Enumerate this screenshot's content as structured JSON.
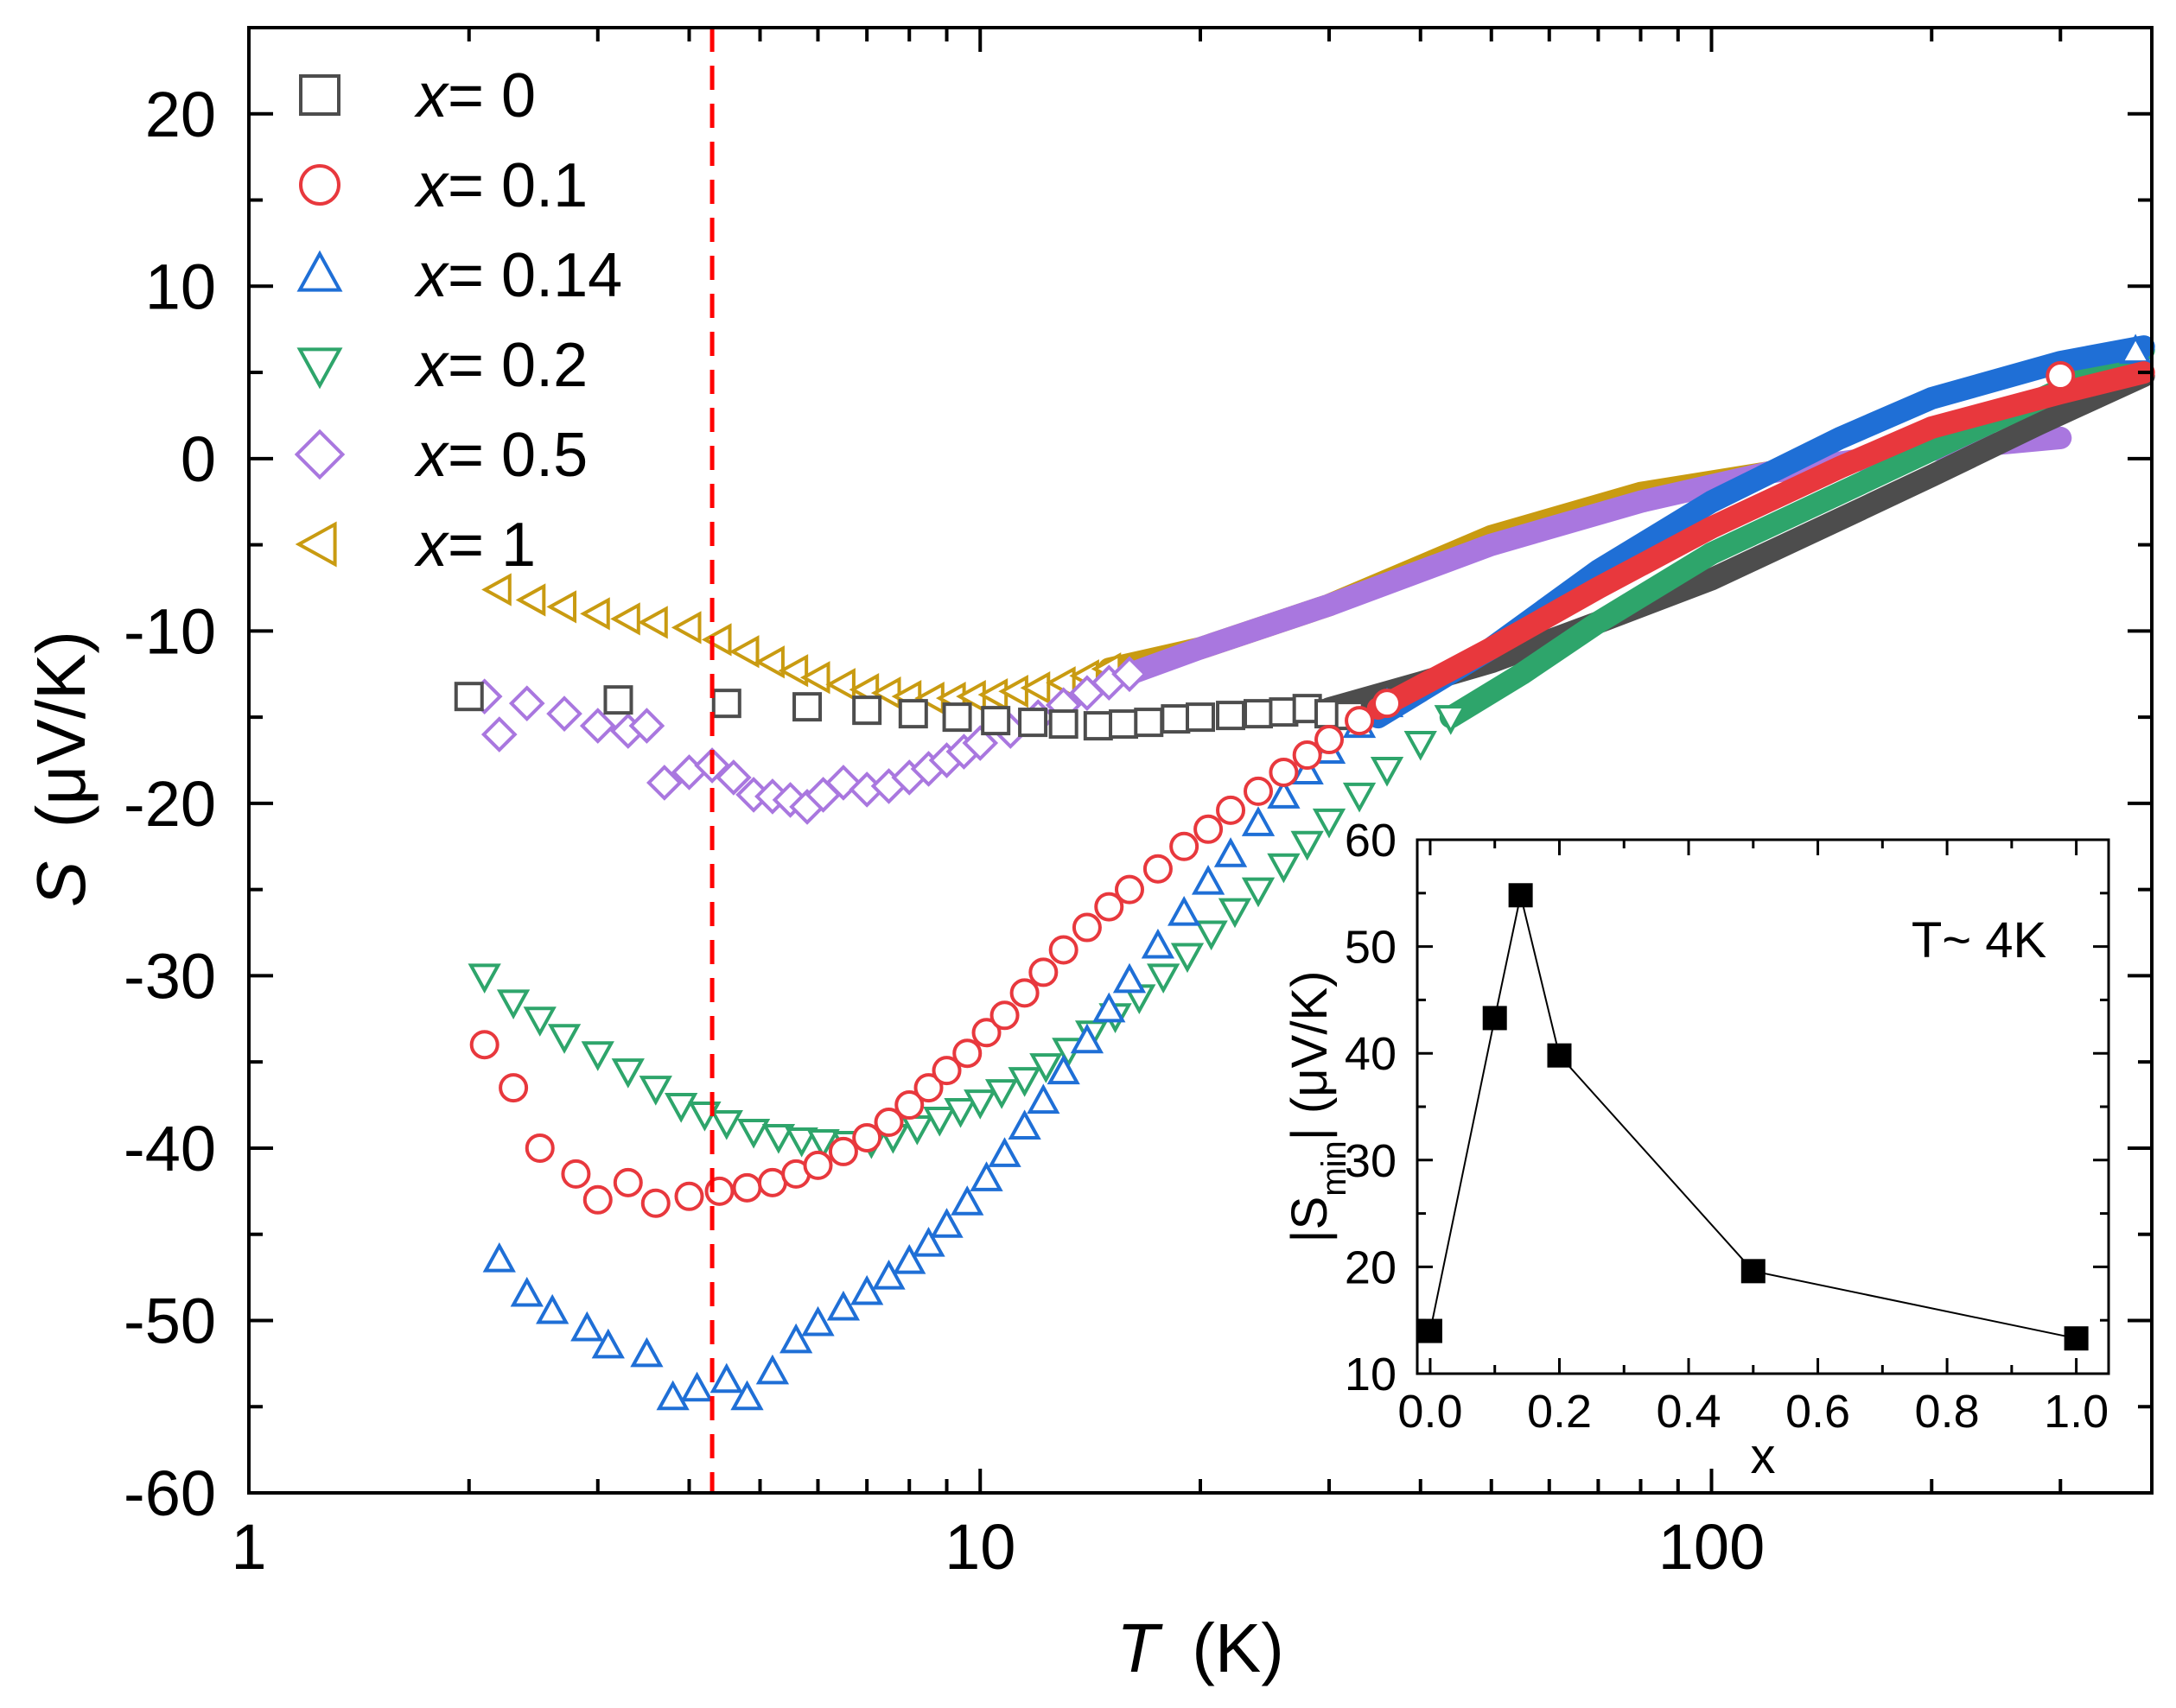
{
  "chart_data": [
    {
      "type": "scatter",
      "title": "",
      "xlabel": "T",
      "xlabel_unit": "(K)",
      "ylabel": "S",
      "ylabel_unit": "(μV/K)",
      "xscale": "log",
      "xlim": [
        1,
        400
      ],
      "ylim": [
        -60,
        25
      ],
      "xticks": [
        1,
        10,
        100
      ],
      "xtick_labels": [
        "1",
        "10",
        "100"
      ],
      "yticks": [
        -60,
        -50,
        -40,
        -30,
        -20,
        -10,
        0,
        10,
        20
      ],
      "ytick_labels": [
        "-60",
        "-50",
        "-40",
        "-30",
        "-20",
        "-10",
        "0",
        "10",
        "20"
      ],
      "grid": false,
      "legend_position": "top-left",
      "reference_line": {
        "x": 4.3,
        "style": "dashed",
        "color": "#ff0000"
      },
      "series": [
        {
          "name": "x = 0",
          "legend_prefix": "x",
          "legend_value": "= 0",
          "marker": "square",
          "color": "#4d4d4d",
          "points": [
            [
              2.0,
              -13.8
            ],
            [
              3.2,
              -14
            ],
            [
              4.5,
              -14.2
            ],
            [
              5.8,
              -14.4
            ],
            [
              7.0,
              -14.6
            ],
            [
              8.1,
              -14.8
            ],
            [
              9.3,
              -15
            ],
            [
              10.5,
              -15.2
            ],
            [
              11.8,
              -15.3
            ],
            [
              13.0,
              -15.4
            ],
            [
              14.5,
              -15.5
            ],
            [
              15.7,
              -15.4
            ],
            [
              17.0,
              -15.3
            ],
            [
              18.5,
              -15.1
            ],
            [
              20.0,
              -15
            ],
            [
              22.0,
              -14.9
            ],
            [
              24.0,
              -14.8
            ],
            [
              26.0,
              -14.7
            ],
            [
              28.0,
              -14.5
            ],
            [
              30.0,
              -14.8
            ],
            [
              32.0,
              -14.9
            ]
          ],
          "curve": [
            [
              30,
              -14.5
            ],
            [
              40,
              -13
            ],
            [
              50,
              -11.8
            ],
            [
              70,
              -9.5
            ],
            [
              100,
              -7
            ],
            [
              150,
              -3.5
            ],
            [
              200,
              -1
            ],
            [
              280,
              2
            ],
            [
              390,
              4.8
            ]
          ]
        },
        {
          "name": "x = 0.1",
          "legend_prefix": "x",
          "legend_value": "= 0.1",
          "marker": "circle",
          "color": "#e8383d",
          "points": [
            [
              2.1,
              -34
            ],
            [
              2.3,
              -36.5
            ],
            [
              2.5,
              -40
            ],
            [
              2.8,
              -41.5
            ],
            [
              3.0,
              -43
            ],
            [
              3.3,
              -42
            ],
            [
              3.6,
              -43.2
            ],
            [
              4.0,
              -42.8
            ],
            [
              4.4,
              -42.5
            ],
            [
              4.8,
              -42.3
            ],
            [
              5.2,
              -42.0
            ],
            [
              5.6,
              -41.5
            ],
            [
              6.0,
              -41.0
            ],
            [
              6.5,
              -40.2
            ],
            [
              7.0,
              -39.4
            ],
            [
              7.5,
              -38.5
            ],
            [
              8.0,
              -37.5
            ],
            [
              8.5,
              -36.5
            ],
            [
              9.0,
              -35.5
            ],
            [
              9.6,
              -34.5
            ],
            [
              10.2,
              -33.3
            ],
            [
              10.8,
              -32.3
            ],
            [
              11.5,
              -31.0
            ],
            [
              12.2,
              -29.8
            ],
            [
              13.0,
              -28.5
            ],
            [
              14.0,
              -27.2
            ],
            [
              15.0,
              -26.0
            ],
            [
              16.0,
              -25.0
            ],
            [
              17.5,
              -23.8
            ],
            [
              19.0,
              -22.5
            ],
            [
              20.5,
              -21.5
            ],
            [
              22.0,
              -20.4
            ],
            [
              24.0,
              -19.3
            ],
            [
              26.0,
              -18.2
            ],
            [
              28.0,
              -17.2
            ],
            [
              30.0,
              -16.3
            ],
            [
              33.0,
              -15.2
            ],
            [
              36.0,
              -14.2
            ],
            [
              300,
              4.8
            ]
          ],
          "curve": [
            [
              35,
              -14.5
            ],
            [
              50,
              -11
            ],
            [
              70,
              -7.5
            ],
            [
              100,
              -4
            ],
            [
              150,
              -0.5
            ],
            [
              200,
              1.8
            ],
            [
              300,
              3.8
            ],
            [
              390,
              5
            ]
          ]
        },
        {
          "name": "x = 0.14",
          "legend_prefix": "x",
          "legend_value": "= 0.14",
          "marker": "triangle-up",
          "color": "#1f6fd6",
          "points": [
            [
              2.2,
              -46.5
            ],
            [
              2.4,
              -48.5
            ],
            [
              2.6,
              -49.5
            ],
            [
              2.9,
              -50.5
            ],
            [
              3.1,
              -51.5
            ],
            [
              3.5,
              -52
            ],
            [
              3.8,
              -54.5
            ],
            [
              4.1,
              -54
            ],
            [
              4.5,
              -53.5
            ],
            [
              4.8,
              -54.5
            ],
            [
              5.2,
              -53
            ],
            [
              5.6,
              -51.2
            ],
            [
              6.0,
              -50.2
            ],
            [
              6.5,
              -49.3
            ],
            [
              7.0,
              -48.4
            ],
            [
              7.5,
              -47.5
            ],
            [
              8.0,
              -46.6
            ],
            [
              8.5,
              -45.6
            ],
            [
              9.0,
              -44.5
            ],
            [
              9.6,
              -43.2
            ],
            [
              10.2,
              -41.8
            ],
            [
              10.8,
              -40.4
            ],
            [
              11.5,
              -38.8
            ],
            [
              12.2,
              -37.3
            ],
            [
              13.0,
              -35.6
            ],
            [
              14.0,
              -33.8
            ],
            [
              15.0,
              -32.0
            ],
            [
              16.0,
              -30.3
            ],
            [
              17.5,
              -28.3
            ],
            [
              19.0,
              -26.4
            ],
            [
              20.5,
              -24.6
            ],
            [
              22.0,
              -23.0
            ],
            [
              24.0,
              -21.2
            ],
            [
              26.0,
              -19.6
            ],
            [
              28.0,
              -18.2
            ],
            [
              30.0,
              -17.0
            ],
            [
              33.0,
              -15.5
            ],
            [
              36.0,
              -14.3
            ],
            [
              380,
              6.2
            ]
          ],
          "curve": [
            [
              35,
              -15
            ],
            [
              50,
              -11
            ],
            [
              70,
              -6.5
            ],
            [
              100,
              -2.5
            ],
            [
              150,
              1.2
            ],
            [
              200,
              3.5
            ],
            [
              300,
              5.6
            ],
            [
              390,
              6.5
            ]
          ]
        },
        {
          "name": "x = 0.2",
          "legend_prefix": "x",
          "legend_value": "= 0.2",
          "marker": "triangle-down",
          "color": "#2ea56b",
          "points": [
            [
              2.1,
              -30
            ],
            [
              2.3,
              -31.5
            ],
            [
              2.5,
              -32.5
            ],
            [
              2.7,
              -33.5
            ],
            [
              3.0,
              -34.5
            ],
            [
              3.3,
              -35.5
            ],
            [
              3.6,
              -36.5
            ],
            [
              3.9,
              -37.5
            ],
            [
              4.2,
              -38
            ],
            [
              4.5,
              -38.5
            ],
            [
              4.9,
              -39
            ],
            [
              5.3,
              -39.3
            ],
            [
              5.7,
              -39.5
            ],
            [
              6.1,
              -39.6
            ],
            [
              6.6,
              -39.7
            ],
            [
              7.1,
              -39.6
            ],
            [
              7.6,
              -39.3
            ],
            [
              8.2,
              -38.8
            ],
            [
              8.8,
              -38.3
            ],
            [
              9.4,
              -37.8
            ],
            [
              10.0,
              -37.3
            ],
            [
              10.7,
              -36.7
            ],
            [
              11.5,
              -36.0
            ],
            [
              12.3,
              -35.2
            ],
            [
              13.2,
              -34.3
            ],
            [
              14.2,
              -33.3
            ],
            [
              15.3,
              -32.3
            ],
            [
              16.5,
              -31.2
            ],
            [
              17.8,
              -30.0
            ],
            [
              19.2,
              -28.8
            ],
            [
              20.7,
              -27.5
            ],
            [
              22.3,
              -26.2
            ],
            [
              24.0,
              -25.0
            ],
            [
              26.0,
              -23.6
            ],
            [
              28.0,
              -22.3
            ],
            [
              30.0,
              -21.0
            ],
            [
              33.0,
              -19.5
            ],
            [
              36.0,
              -18.0
            ],
            [
              40.0,
              -16.5
            ],
            [
              44.0,
              -15.0
            ]
          ],
          "curve": [
            [
              44,
              -15
            ],
            [
              55,
              -12.5
            ],
            [
              70,
              -9.5
            ],
            [
              100,
              -5.5
            ],
            [
              150,
              -2
            ],
            [
              200,
              0.5
            ],
            [
              300,
              4
            ],
            [
              390,
              6.3
            ]
          ]
        },
        {
          "name": "x = 0.5",
          "legend_prefix": "x",
          "legend_value": "= 0.5",
          "marker": "diamond",
          "color": "#a977df",
          "points": [
            [
              2.1,
              -13.8
            ],
            [
              2.4,
              -14.2
            ],
            [
              2.7,
              -14.8
            ],
            [
              3.0,
              -15.5
            ],
            [
              3.3,
              -15.8
            ],
            [
              3.5,
              -15.5
            ],
            [
              2.2,
              -16
            ],
            [
              3.7,
              -18.8
            ],
            [
              4.0,
              -18.2
            ],
            [
              4.3,
              -17.8
            ],
            [
              4.6,
              -18.5
            ],
            [
              4.9,
              -19.5
            ],
            [
              5.2,
              -19.6
            ],
            [
              5.5,
              -19.8
            ],
            [
              5.8,
              -20.2
            ],
            [
              6.1,
              -19.5
            ],
            [
              6.5,
              -18.8
            ],
            [
              7.0,
              -19.2
            ],
            [
              7.5,
              -19
            ],
            [
              8.0,
              -18.5
            ],
            [
              8.5,
              -18.0
            ],
            [
              9.0,
              -17.5
            ],
            [
              9.5,
              -17.0
            ],
            [
              10.0,
              -16.5
            ],
            [
              11.0,
              -15.8
            ],
            [
              12.0,
              -15.0
            ],
            [
              13.0,
              -14.3
            ],
            [
              14.0,
              -13.6
            ],
            [
              15.0,
              -13.0
            ],
            [
              16.0,
              -12.5
            ]
          ],
          "curve": [
            [
              16,
              -12.5
            ],
            [
              20,
              -11
            ],
            [
              30,
              -8.5
            ],
            [
              50,
              -5
            ],
            [
              80,
              -2.5
            ],
            [
              120,
              -0.8
            ],
            [
              200,
              0.5
            ],
            [
              300,
              1.2
            ]
          ]
        },
        {
          "name": "x = 1",
          "legend_prefix": "x",
          "legend_value": "= 1",
          "marker": "triangle-left",
          "color": "#c99b11",
          "points": [
            [
              2.2,
              -7.6
            ],
            [
              2.45,
              -8.2
            ],
            [
              2.7,
              -8.6
            ],
            [
              3.0,
              -9
            ],
            [
              3.3,
              -9.3
            ],
            [
              3.6,
              -9.5
            ],
            [
              4.0,
              -9.8
            ],
            [
              4.4,
              -10.5
            ],
            [
              4.8,
              -11.2
            ],
            [
              5.2,
              -11.8
            ],
            [
              5.6,
              -12.3
            ],
            [
              6.0,
              -12.7
            ],
            [
              6.5,
              -13.1
            ],
            [
              7.0,
              -13.4
            ],
            [
              7.5,
              -13.6
            ],
            [
              8.0,
              -13.8
            ],
            [
              8.6,
              -13.9
            ],
            [
              9.2,
              -13.9
            ],
            [
              9.8,
              -13.8
            ],
            [
              10.5,
              -13.7
            ],
            [
              11.2,
              -13.5
            ],
            [
              12.0,
              -13.3
            ],
            [
              13.0,
              -13.0
            ],
            [
              14.0,
              -12.6
            ],
            [
              15.0,
              -12.2
            ]
          ],
          "curve": [
            [
              15,
              -12.2
            ],
            [
              20,
              -11
            ],
            [
              30,
              -8.5
            ],
            [
              50,
              -4.5
            ],
            [
              80,
              -2
            ],
            [
              120,
              -0.8
            ]
          ]
        }
      ]
    },
    {
      "type": "line",
      "title": "",
      "annotation": "T~ 4K",
      "xlabel": "x",
      "ylabel_parts": [
        "|S",
        "min",
        "| (μV/K)"
      ],
      "xlim": [
        -0.02,
        1.05
      ],
      "ylim": [
        10,
        60
      ],
      "xticks": [
        0.0,
        0.2,
        0.4,
        0.6,
        0.8,
        1.0
      ],
      "xtick_labels": [
        "0.0",
        "0.2",
        "0.4",
        "0.6",
        "0.8",
        "1.0"
      ],
      "yticks": [
        10,
        20,
        30,
        40,
        50,
        60
      ],
      "ytick_labels": [
        "10",
        "20",
        "30",
        "40",
        "50",
        "60"
      ],
      "grid": false,
      "series": [
        {
          "name": "|Smin|",
          "marker": "filled-square",
          "color": "#000000",
          "x": [
            0.0,
            0.1,
            0.14,
            0.2,
            0.5,
            1.0
          ],
          "values": [
            14,
            43.3,
            54.8,
            39.8,
            19.6,
            13.3
          ]
        }
      ]
    }
  ]
}
